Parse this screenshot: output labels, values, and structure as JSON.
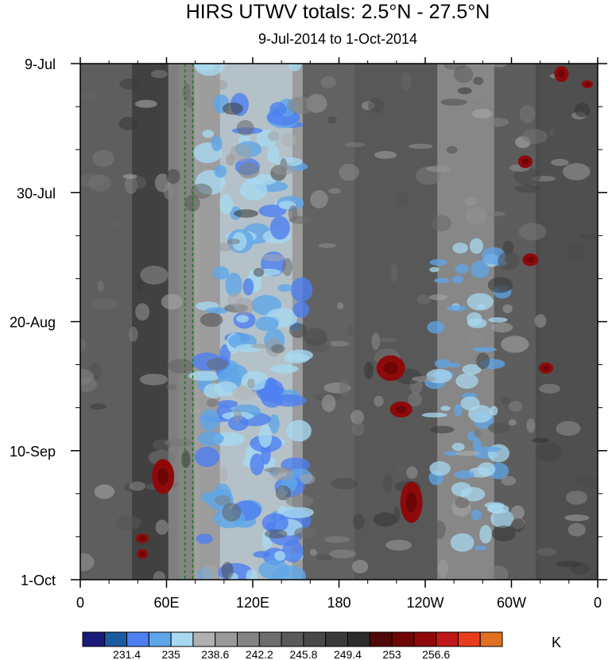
{
  "chart_data": {
    "type": "heatmap",
    "title": "HIRS UTWV totals: 2.5°N - 27.5°N",
    "subtitle": "9-Jul-2014 to 1-Oct-2014",
    "xlabel": "",
    "ylabel": "",
    "x_ticks": [
      "0",
      "60E",
      "120E",
      "180",
      "120W",
      "60W",
      "0"
    ],
    "y_ticks": [
      "9-Jul",
      "30-Jul",
      "20-Aug",
      "10-Sep",
      "1-Oct"
    ],
    "units": "K",
    "colorbar": {
      "labels": [
        "231.4",
        "235",
        "238.6",
        "242.2",
        "245.8",
        "249.4",
        "253",
        "256.6"
      ],
      "colors": [
        "#1a1a7a",
        "#1c5aa0",
        "#4d7ff0",
        "#5fa6e8",
        "#a8d8f0",
        "#b0b0b0",
        "#9a9a9a",
        "#848484",
        "#6e6e6e",
        "#5a5a5a",
        "#484848",
        "#3a3a3a",
        "#2c2c2c",
        "#500808",
        "#6e0606",
        "#8e0a0a",
        "#c01818",
        "#e83c1c",
        "#e07022"
      ]
    },
    "reference_lines": [
      {
        "style": "dashed",
        "color": "#1e7a1e"
      },
      {
        "style": "dashed",
        "color": "#1e7a1e"
      }
    ],
    "grid": false
  }
}
